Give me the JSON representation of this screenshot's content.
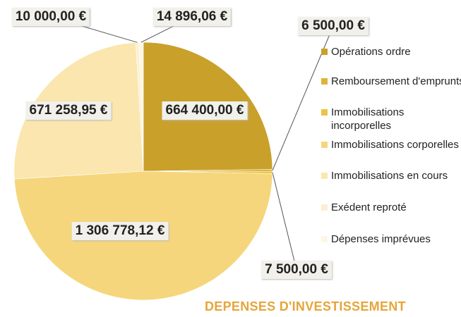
{
  "chart_data": {
    "type": "pie",
    "title": "DEPENSES D'INVESTISSEMENT",
    "categories": [
      "Opérations ordre",
      "Remboursement d'emprunts",
      "Immobilisations incorporelles",
      "Immobilisations corporelles",
      "Immobilisations en cours",
      "Exédent reproté",
      "Dépenses imprévues"
    ],
    "values": [
      664400,
      6500,
      7500,
      1306778.12,
      671258.95,
      10000,
      14896.06
    ],
    "value_labels": [
      "664 400,00 €",
      "6 500,00 €",
      "7 500,00 €",
      "1 306 778,12 €",
      "671 258,95 €",
      "10 000,00 €",
      "14 896,06 €"
    ],
    "colors": [
      "#c9a02a",
      "#dcb43c",
      "#eac445",
      "#f6d67c",
      "#fae6ae",
      "#fcefd0",
      "#fdf6e4"
    ],
    "legend": "right"
  }
}
